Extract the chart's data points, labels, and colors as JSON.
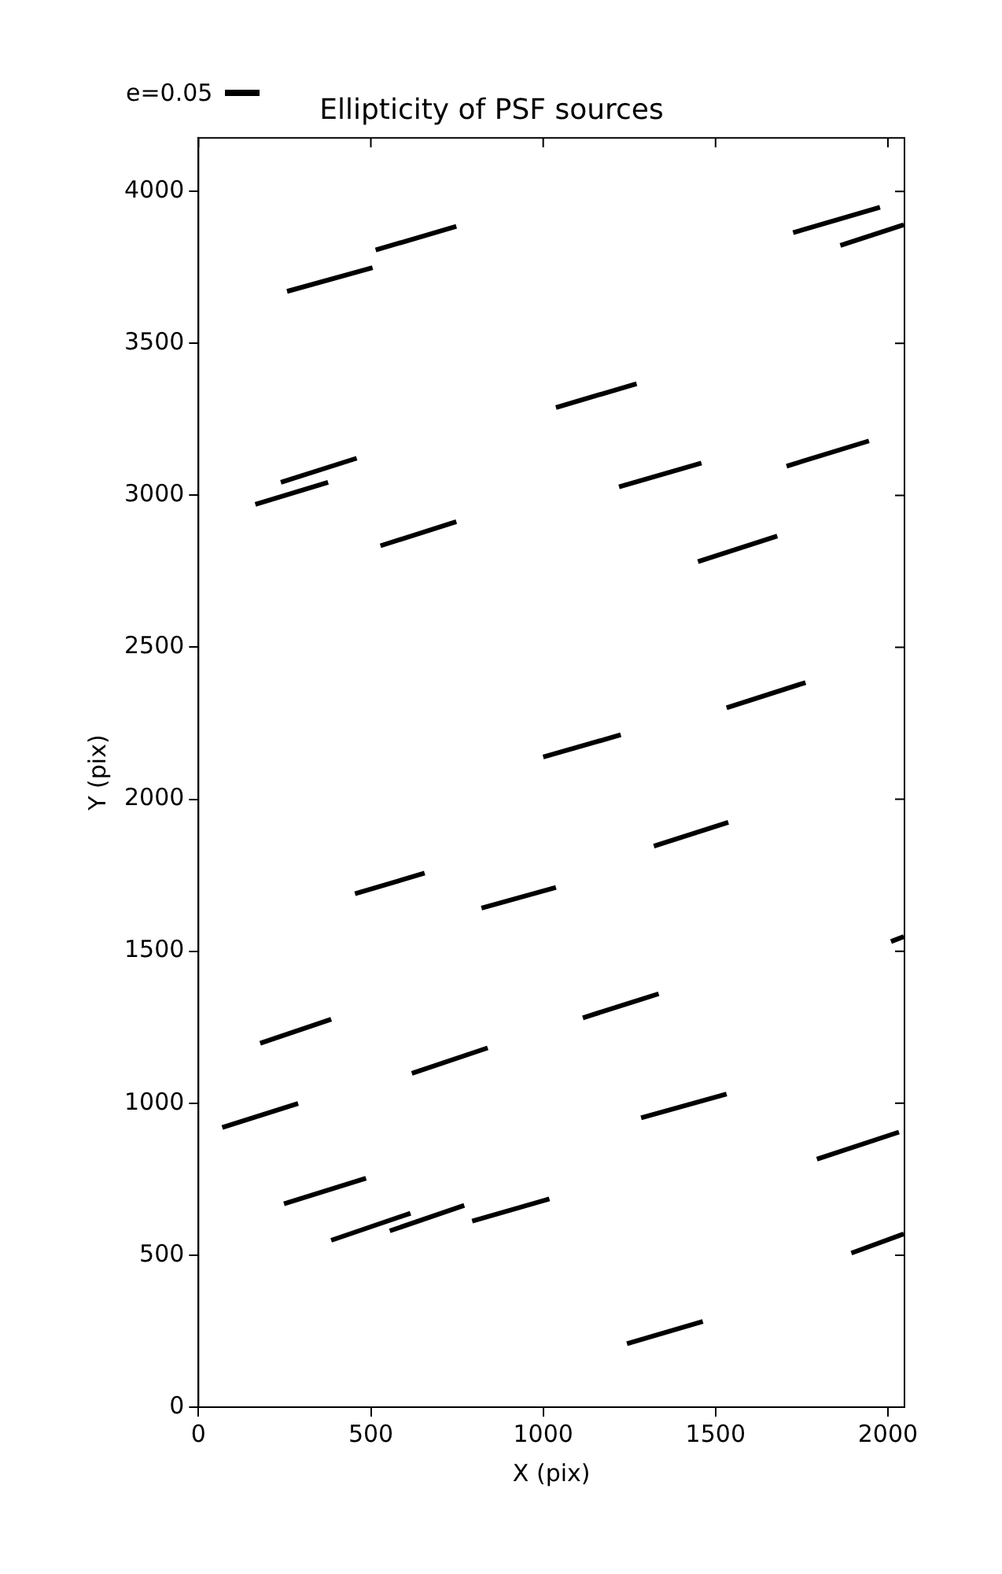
{
  "chart_data": {
    "type": "line",
    "title": "Ellipticity of PSF sources",
    "xlabel": "X (pix)",
    "ylabel": "Y (pix)",
    "annotations": [
      "e=0.05"
    ],
    "xlim": [
      0,
      2048
    ],
    "ylim": [
      0,
      4176
    ],
    "xticks": [
      0,
      500,
      1000,
      1500,
      2000
    ],
    "yticks": [
      0,
      500,
      1000,
      1500,
      2000,
      2500,
      3000,
      3500,
      4000
    ],
    "grid": false,
    "marker": "none",
    "line_style": "solid",
    "series": [
      {
        "color": "#000000",
        "x": [
          257,
          505
        ],
        "values": [
          3671,
          3749
        ]
      },
      {
        "type": "line",
        "color": "#000000",
        "x": [
          514,
          748
        ],
        "values": [
          3807,
          3885
        ]
      },
      {
        "type": "line",
        "color": "#000000",
        "x": [
          1725,
          1977
        ],
        "values": [
          3864,
          3948
        ]
      },
      {
        "type": "line",
        "color": "#000000",
        "x": [
          1862,
          2046
        ],
        "values": [
          3822,
          3890
        ]
      },
      {
        "type": "line",
        "color": "#000000",
        "x": [
          1037,
          1271
        ],
        "values": [
          3289,
          3367
        ]
      },
      {
        "type": "line",
        "color": "#000000",
        "x": [
          239,
          459
        ],
        "values": [
          3043,
          3122
        ]
      },
      {
        "type": "line",
        "color": "#000000",
        "x": [
          165,
          376
        ],
        "values": [
          2970,
          3043
        ]
      },
      {
        "type": "line",
        "color": "#000000",
        "x": [
          1220,
          1459
        ],
        "values": [
          3028,
          3106
        ]
      },
      {
        "type": "line",
        "color": "#000000",
        "x": [
          1706,
          1945
        ],
        "values": [
          3096,
          3179
        ]
      },
      {
        "type": "line",
        "color": "#000000",
        "x": [
          528,
          748
        ],
        "values": [
          2834,
          2913
        ]
      },
      {
        "type": "line",
        "color": "#000000",
        "x": [
          1449,
          1679
        ],
        "values": [
          2782,
          2866
        ]
      },
      {
        "type": "line",
        "color": "#000000",
        "x": [
          1532,
          1761
        ],
        "values": [
          2301,
          2384
        ]
      },
      {
        "type": "line",
        "color": "#000000",
        "x": [
          1000,
          1225
        ],
        "values": [
          2139,
          2212
        ]
      },
      {
        "type": "line",
        "color": "#000000",
        "x": [
          1321,
          1537
        ],
        "values": [
          1846,
          1924
        ]
      },
      {
        "type": "line",
        "color": "#000000",
        "x": [
          454,
          656
        ],
        "values": [
          1689,
          1757
        ]
      },
      {
        "type": "line",
        "color": "#000000",
        "x": [
          821,
          1037
        ],
        "values": [
          1642,
          1710
        ]
      },
      {
        "type": "line",
        "color": "#000000",
        "x": [
          2009,
          2046
        ],
        "values": [
          1532,
          1548
        ]
      },
      {
        "type": "line",
        "color": "#000000",
        "x": [
          1115,
          1335
        ],
        "values": [
          1281,
          1360
        ]
      },
      {
        "type": "line",
        "color": "#000000",
        "x": [
          179,
          385
        ],
        "values": [
          1197,
          1276
        ]
      },
      {
        "type": "line",
        "color": "#000000",
        "x": [
          619,
          839
        ],
        "values": [
          1098,
          1182
        ]
      },
      {
        "type": "line",
        "color": "#000000",
        "x": [
          69,
          289
        ],
        "values": [
          920,
          999
        ]
      },
      {
        "type": "line",
        "color": "#000000",
        "x": [
          1284,
          1532
        ],
        "values": [
          952,
          1030
        ]
      },
      {
        "type": "line",
        "color": "#000000",
        "x": [
          1794,
          2032
        ],
        "values": [
          816,
          905
        ]
      },
      {
        "type": "line",
        "color": "#000000",
        "x": [
          248,
          486
        ],
        "values": [
          669,
          753
        ]
      },
      {
        "type": "line",
        "color": "#000000",
        "x": [
          385,
          615
        ],
        "values": [
          549,
          638
        ]
      },
      {
        "type": "line",
        "color": "#000000",
        "x": [
          555,
          771
        ],
        "values": [
          580,
          664
        ]
      },
      {
        "type": "line",
        "color": "#000000",
        "x": [
          794,
          1018
        ],
        "values": [
          612,
          685
        ]
      },
      {
        "type": "line",
        "color": "#000000",
        "x": [
          1894,
          2046
        ],
        "values": [
          507,
          570
        ]
      },
      {
        "type": "line",
        "color": "#000000",
        "x": [
          1243,
          1463
        ],
        "values": [
          209,
          282
        ]
      }
    ]
  }
}
